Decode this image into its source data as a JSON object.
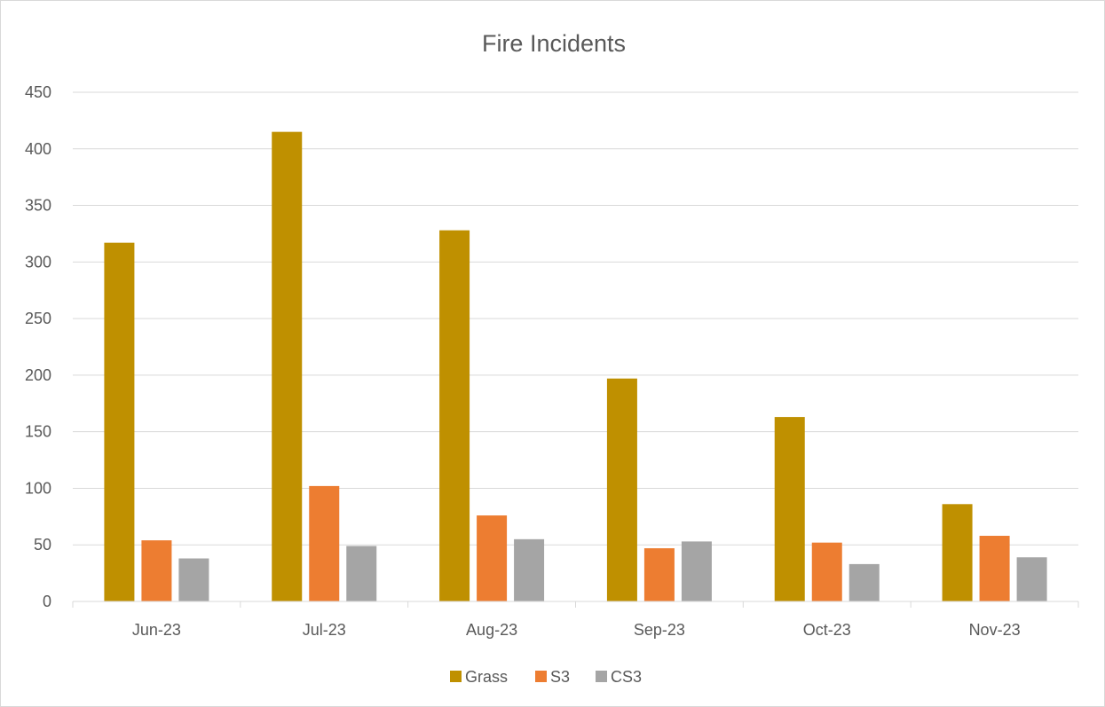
{
  "chart_data": {
    "type": "bar",
    "title": "Fire Incidents",
    "xlabel": "",
    "ylabel": "",
    "categories": [
      "Jun-23",
      "Jul-23",
      "Aug-23",
      "Sep-23",
      "Oct-23",
      "Nov-23"
    ],
    "series": [
      {
        "name": "Grass",
        "color": "#bf9000",
        "values": [
          317,
          415,
          328,
          197,
          163,
          86
        ]
      },
      {
        "name": "S3",
        "color": "#ed7d31",
        "values": [
          54,
          102,
          76,
          47,
          52,
          58
        ]
      },
      {
        "name": "CS3",
        "color": "#a5a5a5",
        "values": [
          38,
          49,
          55,
          53,
          33,
          39
        ]
      }
    ],
    "ylim": [
      0,
      450
    ],
    "yticks": [
      "0",
      "50",
      "100",
      "150",
      "200",
      "250",
      "300",
      "350",
      "400",
      "450"
    ],
    "grid": true,
    "legend_position": "bottom"
  }
}
